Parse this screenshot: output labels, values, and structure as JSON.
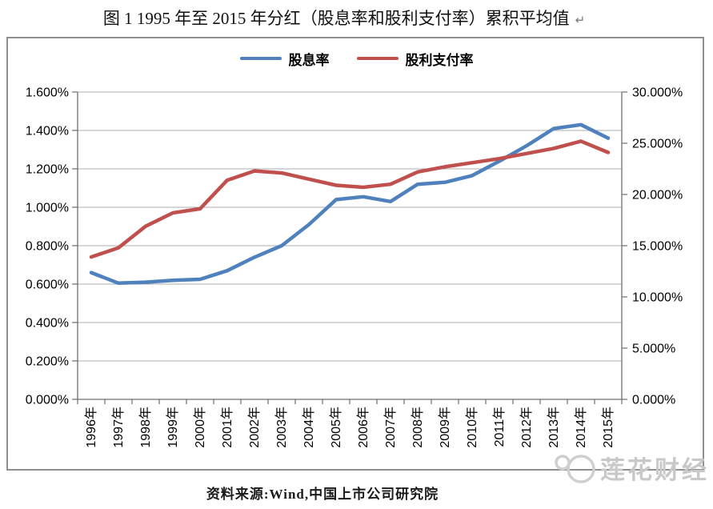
{
  "title": {
    "text": "图 1 1995 年至 2015 年分红（股息率和股利支付率）累积平均值",
    "mark": "↵"
  },
  "footer": {
    "source": "资料来源:Wind,中国上市公司研究院"
  },
  "watermark": {
    "text": "莲花财经"
  },
  "colors": {
    "accent_blue": "#4F81BD",
    "accent_red": "#C0504D",
    "grid": "#adadad",
    "axis": "#6f6f6f",
    "frame_border": "#8f8f8f",
    "watermark": "#c9c9c9",
    "tick_text": "#000000"
  },
  "chart_data": {
    "type": "line",
    "title": "图 1 1995 年至 2015 年分红（股息率和股利支付率）累积平均值",
    "x": [
      "1996年",
      "1997年",
      "1998年",
      "1999年",
      "2000年",
      "2001年",
      "2002年",
      "2003年",
      "2004年",
      "2005年",
      "2006年",
      "2007年",
      "2008年",
      "2009年",
      "2010年",
      "2011年",
      "2012年",
      "2013年",
      "2014年",
      "2015年"
    ],
    "series": [
      {
        "id": "dividend-yield",
        "name": "股息率",
        "axis": "left",
        "color": "#4F81BD",
        "values": [
          0.66,
          0.605,
          0.61,
          0.62,
          0.625,
          0.67,
          0.74,
          0.8,
          0.91,
          1.04,
          1.055,
          1.03,
          1.12,
          1.13,
          1.165,
          1.24,
          1.32,
          1.41,
          1.43,
          1.36
        ]
      },
      {
        "id": "payout-ratio",
        "name": "股利支付率",
        "axis": "right",
        "color": "#C0504D",
        "values": [
          13.9,
          14.8,
          16.9,
          18.2,
          18.6,
          21.4,
          22.3,
          22.1,
          21.5,
          20.9,
          20.7,
          21.0,
          22.2,
          22.7,
          23.1,
          23.5,
          24.0,
          24.5,
          25.2,
          24.1
        ]
      }
    ],
    "left_axis": {
      "min": 0,
      "max": 1.6,
      "step": 0.2,
      "tick_labels": [
        "0.000%",
        "0.200%",
        "0.400%",
        "0.600%",
        "0.800%",
        "1.000%",
        "1.200%",
        "1.400%",
        "1.600%"
      ]
    },
    "right_axis": {
      "min": 0,
      "max": 30,
      "step": 5,
      "tick_labels": [
        "0.000%",
        "5.000%",
        "10.000%",
        "15.000%",
        "20.000%",
        "25.000%",
        "30.000%"
      ]
    },
    "grid": true,
    "legend_position": "top"
  }
}
